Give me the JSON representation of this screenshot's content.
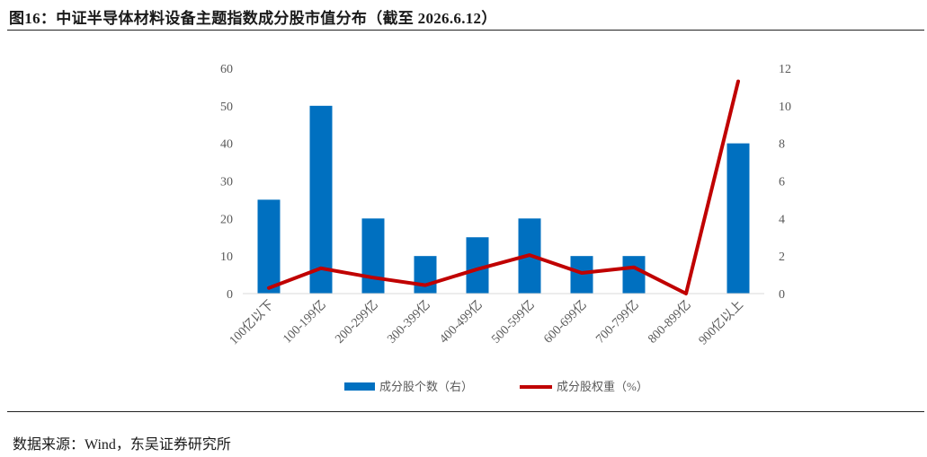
{
  "figure": {
    "title": "图16：中证半导体材料设备主题指数成分股市值分布（截至 2026.6.12）",
    "source": "数据来源：Wind，东吴证券研究所"
  },
  "colors": {
    "bar": "#0070C0",
    "line": "#C00000",
    "axis_text": "#595959"
  },
  "chart_data": {
    "type": "bar",
    "categories": [
      "100亿以下",
      "100-199亿",
      "200-299亿",
      "300-399亿",
      "400-499亿",
      "500-599亿",
      "600-699亿",
      "700-799亿",
      "800-899亿",
      "900亿以上"
    ],
    "series": [
      {
        "name": "成分股个数（右）",
        "type": "bar",
        "axis": "left",
        "values": [
          25,
          50,
          20,
          10,
          15,
          20,
          10,
          10,
          0,
          40
        ]
      },
      {
        "name": "成分股权重（%）",
        "type": "line",
        "axis": "right",
        "values": [
          0.3,
          1.35,
          0.85,
          0.45,
          1.3,
          2.05,
          1.1,
          1.4,
          0.0,
          11.3
        ]
      }
    ],
    "y_left": {
      "min": 0,
      "max": 60,
      "ticks": [
        "0",
        "10",
        "20",
        "30",
        "40",
        "50",
        "60"
      ]
    },
    "y_right": {
      "min": 0,
      "max": 12,
      "ticks": [
        "0",
        "2",
        "4",
        "6",
        "8",
        "10",
        "12"
      ]
    },
    "grid": false,
    "legend": "bottom"
  }
}
